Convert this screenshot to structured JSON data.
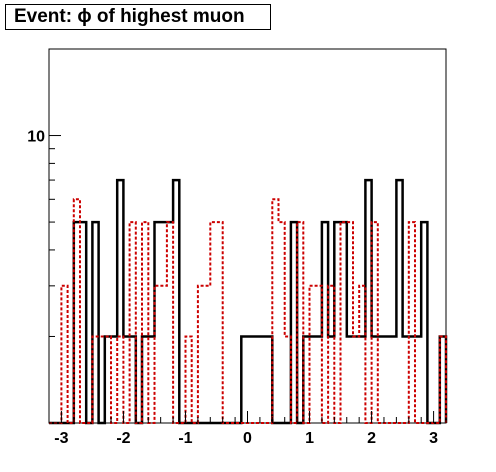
{
  "title": "Event: ϕ of highest muon",
  "chart_data": {
    "type": "histogram-step",
    "title": "Event: ϕ of highest muon",
    "xlabel": "",
    "ylabel": "",
    "x_ticks": [
      "-3",
      "-2",
      "-1",
      "0",
      "1",
      "2",
      "3"
    ],
    "y_ticks": [
      "10"
    ],
    "y_scale": "log",
    "xlim": [
      -3.2,
      3.2
    ],
    "ylim": [
      1,
      20
    ],
    "grid": false,
    "bin_edges": [
      -3.2,
      -3.1,
      -3.0,
      -2.9,
      -2.8,
      -2.7,
      -2.6,
      -2.5,
      -2.4,
      -2.3,
      -2.2,
      -2.1,
      -2.0,
      -1.9,
      -1.8,
      -1.7,
      -1.6,
      -1.5,
      -1.4,
      -1.3,
      -1.2,
      -1.1,
      -1.0,
      -0.9,
      -0.8,
      -0.7,
      -0.6,
      -0.5,
      -0.4,
      -0.3,
      -0.2,
      -0.1,
      0.0,
      0.1,
      0.2,
      0.3,
      0.4,
      0.5,
      0.6,
      0.7,
      0.8,
      0.9,
      1.0,
      1.1,
      1.2,
      1.3,
      1.4,
      1.5,
      1.6,
      1.7,
      1.8,
      1.9,
      2.0,
      2.1,
      2.2,
      2.3,
      2.4,
      2.5,
      2.6,
      2.7,
      2.8,
      2.9,
      3.0,
      3.1,
      3.2
    ],
    "series": [
      {
        "color": "#000000",
        "dash": "solid",
        "values": [
          1,
          1,
          1,
          1,
          5,
          5,
          1,
          5,
          1,
          2,
          2,
          7,
          2,
          2,
          1,
          2,
          2,
          5,
          5,
          5,
          7,
          1,
          1,
          1,
          1,
          1,
          1,
          1,
          1,
          1,
          1,
          2,
          2,
          2,
          2,
          2,
          1,
          1,
          1,
          5,
          1,
          2,
          2,
          2,
          5,
          2,
          5,
          5,
          2,
          2,
          2,
          7,
          2,
          2,
          2,
          2,
          7,
          2,
          2,
          2,
          5,
          1,
          1,
          2
        ]
      },
      {
        "color": "#cc0000",
        "dash": "dashed",
        "values": [
          1,
          1,
          3,
          1,
          6,
          1,
          1,
          2,
          2,
          2,
          1,
          2,
          1,
          5,
          1,
          5,
          1,
          3,
          3,
          5,
          1,
          1,
          2,
          1,
          3,
          3,
          5,
          5,
          1,
          1,
          1,
          1,
          1,
          1,
          1,
          1,
          6,
          5,
          2,
          1,
          5,
          1,
          3,
          3,
          1,
          3,
          1,
          5,
          5,
          2,
          3,
          1,
          5,
          1,
          1,
          1,
          1,
          1,
          5,
          1,
          1,
          1,
          1,
          2
        ]
      }
    ]
  }
}
